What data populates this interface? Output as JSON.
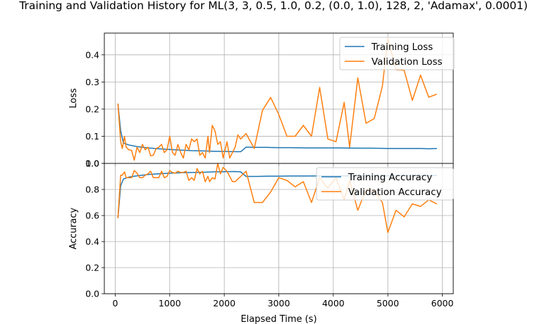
{
  "title": "Training and Validation History for ML(3, 3, 0.5, 1.0, 0.2, (0.0, 1.0), 128, 2, 'Adamax', 0.0001)",
  "colors": {
    "training": "#1f77b4",
    "validation": "#ff7f0e",
    "grid": "#b0b0b0"
  },
  "chart_data": [
    {
      "type": "line",
      "ylabel": "Loss",
      "xlim": [
        -200,
        6200
      ],
      "ylim": [
        0,
        0.48
      ],
      "xticks": [],
      "yticks": [
        0.0,
        0.1,
        0.2,
        0.3,
        0.4
      ],
      "ytick_labels": [
        "0.0",
        "0.1",
        "0.2",
        "0.3",
        "0.4"
      ],
      "grid": true,
      "legend": "top-right",
      "series": [
        {
          "name": "Training Loss",
          "color": "#1f77b4",
          "x": [
            50,
            100,
            150,
            250,
            400,
            600,
            800,
            1000,
            1200,
            1400,
            1600,
            1800,
            2000,
            2200,
            2300,
            2400,
            2600,
            2800,
            3000,
            3200,
            3500,
            3800,
            4100,
            4400,
            4700,
            5000,
            5300,
            5600,
            5750,
            5900
          ],
          "y": [
            0.22,
            0.12,
            0.075,
            0.068,
            0.062,
            0.057,
            0.054,
            0.051,
            0.049,
            0.047,
            0.046,
            0.045,
            0.044,
            0.043,
            0.043,
            0.06,
            0.059,
            0.059,
            0.058,
            0.058,
            0.057,
            0.057,
            0.057,
            0.056,
            0.056,
            0.055,
            0.055,
            0.055,
            0.054,
            0.055
          ]
        },
        {
          "name": "Validation Loss",
          "color": "#ff7f0e",
          "x": [
            50,
            100,
            130,
            170,
            200,
            250,
            300,
            350,
            400,
            450,
            500,
            550,
            600,
            650,
            700,
            750,
            800,
            850,
            900,
            950,
            1000,
            1050,
            1100,
            1150,
            1200,
            1250,
            1300,
            1350,
            1400,
            1450,
            1500,
            1550,
            1600,
            1650,
            1700,
            1730,
            1780,
            1830,
            1880,
            1930,
            1980,
            2050,
            2100,
            2150,
            2200,
            2250,
            2300,
            2400,
            2550,
            2700,
            2850,
            3000,
            3150,
            3300,
            3450,
            3600,
            3750,
            3900,
            4050,
            4200,
            4300,
            4450,
            4600,
            4750,
            4900,
            5000,
            5150,
            5300,
            5450,
            5600,
            5750,
            5900
          ],
          "y": [
            0.22,
            0.08,
            0.055,
            0.1,
            0.06,
            0.05,
            0.048,
            0.012,
            0.06,
            0.04,
            0.07,
            0.05,
            0.06,
            0.028,
            0.03,
            0.055,
            0.06,
            0.07,
            0.04,
            0.05,
            0.1,
            0.04,
            0.03,
            0.07,
            0.04,
            0.02,
            0.07,
            0.05,
            0.09,
            0.08,
            0.09,
            0.03,
            0.04,
            0.02,
            0.1,
            0.04,
            0.14,
            0.12,
            0.07,
            0.08,
            0.02,
            0.08,
            0.02,
            0.04,
            0.06,
            0.105,
            0.09,
            0.11,
            0.055,
            0.195,
            0.243,
            0.18,
            0.1,
            0.1,
            0.14,
            0.1,
            0.28,
            0.09,
            0.08,
            0.225,
            0.06,
            0.315,
            0.148,
            0.165,
            0.285,
            0.46,
            0.345,
            0.343,
            0.232,
            0.325,
            0.244,
            0.255
          ]
        }
      ]
    },
    {
      "type": "line",
      "ylabel": "Accuracy",
      "xlabel": "Elapsed Time (s)",
      "xlim": [
        -200,
        6200
      ],
      "ylim": [
        0,
        1.0
      ],
      "xticks": [
        0,
        1000,
        2000,
        3000,
        4000,
        5000,
        6000
      ],
      "xtick_labels": [
        "0",
        "1000",
        "2000",
        "3000",
        "4000",
        "5000",
        "6000"
      ],
      "yticks": [
        0.0,
        0.2,
        0.4,
        0.6,
        0.8,
        1.0
      ],
      "ytick_labels": [
        "0.0",
        "0.2",
        "0.4",
        "0.6",
        "0.8",
        "1.0"
      ],
      "grid": true,
      "legend": "top-right",
      "series": [
        {
          "name": "Training Accuracy",
          "color": "#1f77b4",
          "x": [
            50,
            100,
            150,
            250,
            400,
            600,
            800,
            1000,
            1200,
            1400,
            1600,
            1800,
            2000,
            2200,
            2300,
            2400,
            2600,
            2800,
            3000,
            3200,
            3500,
            3800,
            4100,
            4400,
            4700,
            5000,
            5300,
            5600,
            5750,
            5900
          ],
          "y": [
            0.58,
            0.83,
            0.88,
            0.895,
            0.905,
            0.915,
            0.92,
            0.925,
            0.928,
            0.93,
            0.932,
            0.935,
            0.937,
            0.938,
            0.935,
            0.9,
            0.9,
            0.902,
            0.902,
            0.903,
            0.903,
            0.904,
            0.904,
            0.905,
            0.905,
            0.905,
            0.906,
            0.906,
            0.907,
            0.907
          ]
        },
        {
          "name": "Validation Accuracy",
          "color": "#ff7f0e",
          "x": [
            50,
            100,
            130,
            170,
            200,
            250,
            300,
            350,
            400,
            450,
            500,
            550,
            600,
            650,
            700,
            750,
            800,
            850,
            900,
            950,
            1000,
            1050,
            1100,
            1150,
            1200,
            1250,
            1300,
            1350,
            1400,
            1450,
            1500,
            1550,
            1600,
            1650,
            1700,
            1730,
            1780,
            1830,
            1880,
            1930,
            1980,
            2050,
            2100,
            2150,
            2200,
            2250,
            2300,
            2400,
            2550,
            2700,
            2850,
            3000,
            3150,
            3300,
            3450,
            3600,
            3750,
            3900,
            4050,
            4200,
            4300,
            4450,
            4600,
            4750,
            4900,
            5000,
            5150,
            5300,
            5450,
            5600,
            5750,
            5900
          ],
          "y": [
            0.58,
            0.91,
            0.91,
            0.935,
            0.89,
            0.89,
            0.89,
            0.945,
            0.925,
            0.89,
            0.89,
            0.91,
            0.92,
            0.94,
            0.89,
            0.89,
            0.89,
            0.94,
            0.89,
            0.9,
            0.945,
            0.93,
            0.925,
            0.94,
            0.93,
            0.93,
            0.94,
            0.87,
            0.89,
            0.87,
            0.96,
            0.92,
            0.94,
            0.86,
            0.9,
            0.86,
            0.89,
            0.88,
            1.0,
            0.92,
            0.97,
            0.94,
            0.9,
            0.86,
            0.86,
            0.88,
            0.9,
            0.94,
            0.7,
            0.7,
            0.78,
            0.89,
            0.87,
            0.82,
            0.86,
            0.7,
            0.89,
            0.81,
            0.89,
            0.72,
            0.87,
            0.64,
            0.8,
            0.79,
            0.7,
            0.47,
            0.64,
            0.59,
            0.69,
            0.67,
            0.72,
            0.69
          ]
        }
      ]
    }
  ]
}
